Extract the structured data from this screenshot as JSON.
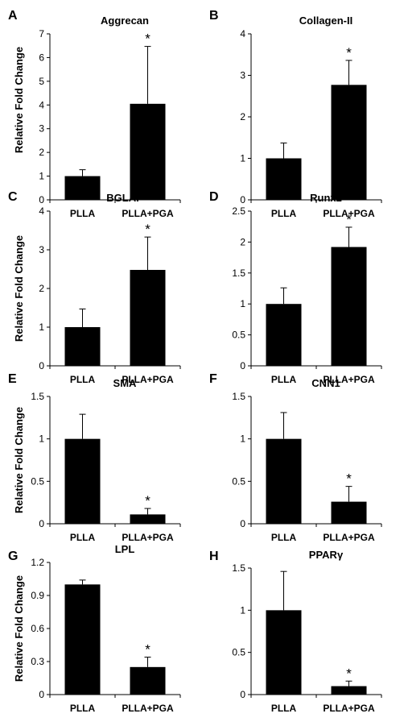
{
  "chart_data": [
    {
      "panel": "A",
      "type": "bar",
      "title": "Aggrecan",
      "ylabel": "Relative Fold Change",
      "xlabel": "",
      "categories": [
        "PLLA",
        "PLLA+PGA"
      ],
      "values": [
        1.0,
        4.05
      ],
      "errors": [
        0.27,
        2.42
      ],
      "ylim": [
        0,
        7
      ],
      "yticks": [
        "0",
        "1",
        "2",
        "3",
        "4",
        "5",
        "6",
        "7"
      ],
      "significance": [
        "",
        "*"
      ],
      "grid": false,
      "legend": "none"
    },
    {
      "panel": "B",
      "type": "bar",
      "title": "Collagen-II",
      "ylabel": "",
      "xlabel": "",
      "categories": [
        "PLLA",
        "PLLA+PGA"
      ],
      "values": [
        1.0,
        2.77
      ],
      "errors": [
        0.37,
        0.59
      ],
      "ylim": [
        0,
        4
      ],
      "yticks": [
        "0",
        "1",
        "2",
        "3",
        "4"
      ],
      "significance": [
        "",
        "*"
      ],
      "grid": false,
      "legend": "none"
    },
    {
      "panel": "C",
      "type": "bar",
      "title": "BGLAP",
      "ylabel": "Relative Fold Change",
      "xlabel": "",
      "categories": [
        "PLLA",
        "PLLA+PGA"
      ],
      "values": [
        1.0,
        2.48
      ],
      "errors": [
        0.47,
        0.85
      ],
      "ylim": [
        0,
        4
      ],
      "yticks": [
        "0",
        "1",
        "2",
        "3",
        "4"
      ],
      "significance": [
        "",
        "*"
      ],
      "grid": false,
      "legend": "none"
    },
    {
      "panel": "D",
      "type": "bar",
      "title": "Runx2",
      "ylabel": "",
      "xlabel": "",
      "categories": [
        "PLLA",
        "PLLA+PGA"
      ],
      "values": [
        1.0,
        1.92
      ],
      "errors": [
        0.26,
        0.32
      ],
      "ylim": [
        0,
        2.5
      ],
      "yticks": [
        "0",
        "0.5",
        "1",
        "1.5",
        "2",
        "2.5"
      ],
      "significance": [
        "",
        "*"
      ],
      "grid": false,
      "legend": "none"
    },
    {
      "panel": "E",
      "type": "bar",
      "title": "SMA",
      "ylabel": "Relative Fold Change",
      "xlabel": "",
      "categories": [
        "PLLA",
        "PLLA+PGA"
      ],
      "values": [
        1.0,
        0.11
      ],
      "errors": [
        0.29,
        0.07
      ],
      "ylim": [
        0,
        1.5
      ],
      "yticks": [
        "0",
        "0.5",
        "1",
        "1.5"
      ],
      "significance": [
        "",
        "*"
      ],
      "grid": false,
      "legend": "none"
    },
    {
      "panel": "F",
      "type": "bar",
      "title": "CNN1",
      "ylabel": "",
      "xlabel": "",
      "categories": [
        "PLLA",
        "PLLA+PGA"
      ],
      "values": [
        1.0,
        0.26
      ],
      "errors": [
        0.31,
        0.18
      ],
      "ylim": [
        0,
        1.5
      ],
      "yticks": [
        "0",
        "0.5",
        "1",
        "1.5"
      ],
      "significance": [
        "",
        "*"
      ],
      "grid": false,
      "legend": "none"
    },
    {
      "panel": "G",
      "type": "bar",
      "title": "LPL",
      "ylabel": "Relative Fold Change",
      "xlabel": "",
      "categories": [
        "PLLA",
        "PLLA+PGA"
      ],
      "values": [
        1.0,
        0.25
      ],
      "errors": [
        0.04,
        0.09
      ],
      "ylim": [
        0,
        1.2
      ],
      "yticks": [
        "0",
        "0.3",
        "0.6",
        "0.9",
        "1.2"
      ],
      "significance": [
        "",
        "*"
      ],
      "grid": false,
      "legend": "none"
    },
    {
      "panel": "H",
      "type": "bar",
      "title": "PPARγ",
      "ylabel": "",
      "xlabel": "",
      "categories": [
        "PLLA",
        "PLLA+PGA"
      ],
      "values": [
        1.0,
        0.1
      ],
      "errors": [
        0.46,
        0.06
      ],
      "ylim": [
        0,
        1.5
      ],
      "yticks": [
        "0",
        "0.5",
        "1",
        "1.5"
      ],
      "significance": [
        "",
        "*"
      ],
      "grid": false,
      "legend": "none"
    }
  ],
  "style": {
    "bar_color": "#000000",
    "axis_color": "#000000",
    "background": "#ffffff"
  }
}
